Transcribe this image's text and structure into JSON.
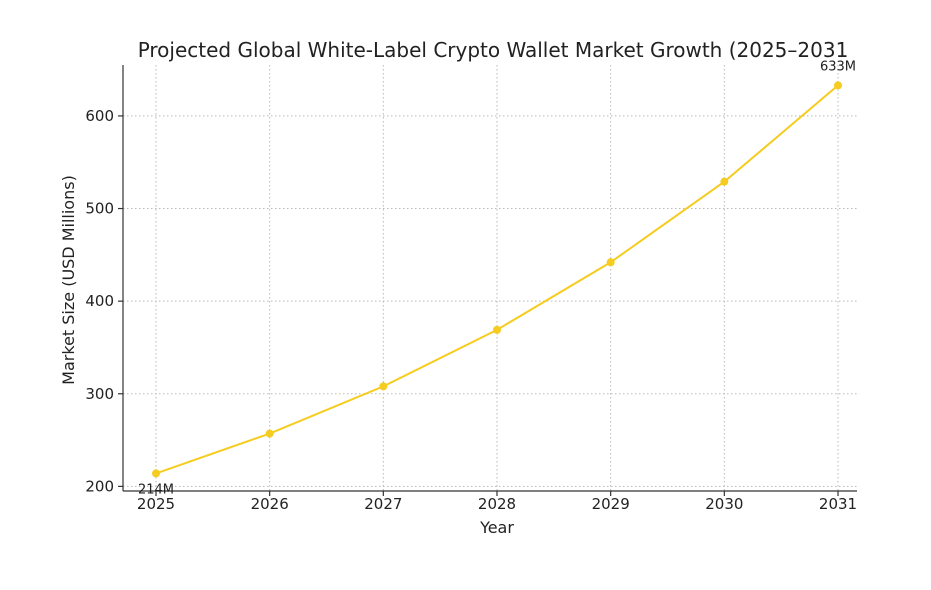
{
  "chart_data": {
    "type": "line",
    "title": "Projected Global White-Label Crypto Wallet Market Growth (2025–2031",
    "xlabel": "Year",
    "ylabel": "Market Size (USD Millions)",
    "x": [
      2025,
      2026,
      2027,
      2028,
      2029,
      2030,
      2031
    ],
    "series": [
      {
        "values": [
          214,
          257,
          308,
          369,
          442,
          529,
          633
        ]
      }
    ],
    "xticks": [
      "2025",
      "2026",
      "2027",
      "2028",
      "2029",
      "2030",
      "2031"
    ],
    "yticks": [
      200,
      300,
      400,
      500,
      600
    ],
    "ylim": [
      195,
      655
    ],
    "grid": true,
    "line_color": "#f5cc1f",
    "annotations": [
      {
        "label": "214M",
        "x": 2025,
        "y": 214
      },
      {
        "label": "633M",
        "x": 2031,
        "y": 633
      }
    ]
  }
}
